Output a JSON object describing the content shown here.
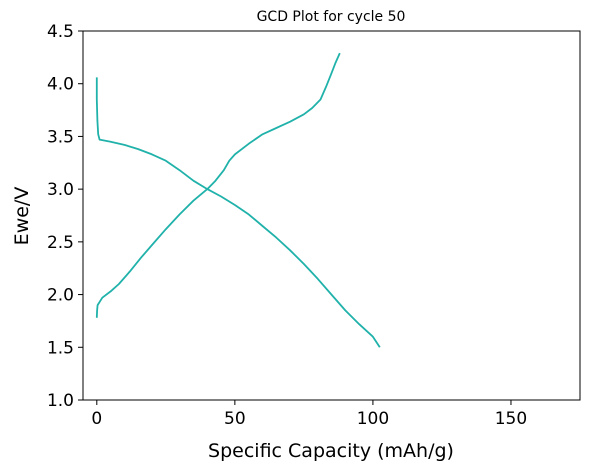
{
  "chart_data": {
    "type": "line",
    "title": "GCD Plot for cycle 50",
    "xlabel": "Specific Capacity (mAh/g)",
    "ylabel": "Ewe/V",
    "xlim": [
      -5,
      175
    ],
    "ylim": [
      1.0,
      4.5
    ],
    "xticks": [
      0,
      50,
      100,
      150
    ],
    "yticks": [
      1.0,
      1.5,
      2.0,
      2.5,
      3.0,
      3.5,
      4.0,
      4.5
    ],
    "xtick_labels": [
      "0",
      "50",
      "100",
      "150"
    ],
    "ytick_labels": [
      "1.0",
      "1.5",
      "2.0",
      "2.5",
      "3.0",
      "3.5",
      "4.0",
      "4.5"
    ],
    "grid": false,
    "line_color": "#20b2aa",
    "series": [
      {
        "values": [
          [
            0.0,
            4.06
          ],
          [
            0.0,
            3.85
          ],
          [
            0.2,
            3.65
          ],
          [
            0.5,
            3.52
          ],
          [
            1.0,
            3.47
          ],
          [
            5,
            3.45
          ],
          [
            10,
            3.42
          ],
          [
            15,
            3.38
          ],
          [
            20,
            3.33
          ],
          [
            25,
            3.27
          ],
          [
            30,
            3.18
          ],
          [
            35,
            3.08
          ],
          [
            40,
            3.0
          ],
          [
            45,
            2.93
          ],
          [
            50,
            2.85
          ],
          [
            55,
            2.76
          ],
          [
            60,
            2.65
          ],
          [
            65,
            2.54
          ],
          [
            70,
            2.42
          ],
          [
            75,
            2.29
          ],
          [
            80,
            2.15
          ],
          [
            85,
            2.0
          ],
          [
            90,
            1.85
          ],
          [
            95,
            1.72
          ],
          [
            100,
            1.6
          ],
          [
            102.5,
            1.5
          ]
        ]
      },
      {
        "values": [
          [
            0.0,
            1.78
          ],
          [
            0.1,
            1.85
          ],
          [
            0.3,
            1.9
          ],
          [
            2,
            1.97
          ],
          [
            5,
            2.03
          ],
          [
            8,
            2.1
          ],
          [
            12,
            2.22
          ],
          [
            16,
            2.35
          ],
          [
            20,
            2.47
          ],
          [
            25,
            2.62
          ],
          [
            30,
            2.76
          ],
          [
            35,
            2.89
          ],
          [
            40,
            3.0
          ],
          [
            43,
            3.08
          ],
          [
            46,
            3.18
          ],
          [
            48,
            3.27
          ],
          [
            50,
            3.33
          ],
          [
            55,
            3.43
          ],
          [
            60,
            3.52
          ],
          [
            65,
            3.58
          ],
          [
            70,
            3.64
          ],
          [
            75,
            3.71
          ],
          [
            78,
            3.77
          ],
          [
            81,
            3.85
          ],
          [
            83,
            3.97
          ],
          [
            85,
            4.1
          ],
          [
            86.5,
            4.2
          ],
          [
            88,
            4.29
          ]
        ]
      }
    ]
  }
}
